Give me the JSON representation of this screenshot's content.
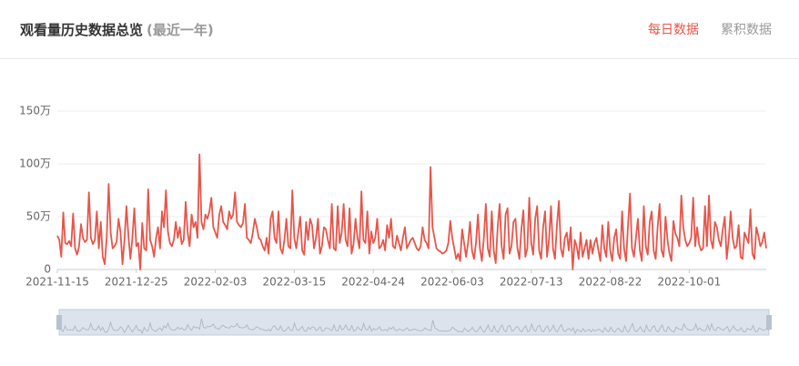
{
  "header": {
    "title": "观看量历史数据总览",
    "subtitle": "(最近一年)",
    "tabs": [
      "每日数据",
      "累积数据"
    ]
  },
  "chart_data": {
    "type": "line",
    "categories": [
      "2021-11-15",
      null,
      null,
      null,
      null,
      null,
      null,
      null,
      null,
      null,
      null,
      null,
      null,
      null,
      null,
      null,
      null,
      null,
      null,
      null,
      null,
      null,
      null,
      null,
      null,
      null,
      null,
      null,
      null,
      null,
      null,
      null,
      null,
      null,
      null,
      null,
      null,
      null,
      null,
      null,
      "2021-12-25",
      null,
      null,
      null,
      null,
      null,
      null,
      null,
      null,
      null,
      null,
      null,
      null,
      null,
      null,
      null,
      null,
      null,
      null,
      null,
      null,
      null,
      null,
      null,
      null,
      null,
      null,
      null,
      null,
      null,
      null,
      null,
      null,
      null,
      null,
      null,
      null,
      null,
      null,
      null,
      "2022-02-03",
      null,
      null,
      null,
      null,
      null,
      null,
      null,
      null,
      null,
      null,
      null,
      null,
      null,
      null,
      null,
      null,
      null,
      null,
      null,
      null,
      null,
      null,
      null,
      null,
      null,
      null,
      null,
      null,
      null,
      null,
      null,
      null,
      null,
      null,
      null,
      null,
      null,
      null,
      null,
      "2022-03-15",
      null,
      null,
      null,
      null,
      null,
      null,
      null,
      null,
      null,
      null,
      null,
      null,
      null,
      null,
      null,
      null,
      null,
      null,
      null,
      null,
      null,
      null,
      null,
      null,
      null,
      null,
      null,
      null,
      null,
      null,
      null,
      null,
      null,
      null,
      null,
      null,
      null,
      null,
      null,
      "2022-04-24",
      null,
      null,
      null,
      null,
      null,
      null,
      null,
      null,
      null,
      null,
      null,
      null,
      null,
      null,
      null,
      null,
      null,
      null,
      null,
      null,
      null,
      null,
      null,
      null,
      null,
      null,
      null,
      null,
      null,
      null,
      null,
      null,
      null,
      null,
      null,
      null,
      null,
      null,
      null,
      "2022-06-03",
      null,
      null,
      null,
      null,
      null,
      null,
      null,
      null,
      null,
      null,
      null,
      null,
      null,
      null,
      null,
      null,
      null,
      null,
      null,
      null,
      null,
      null,
      null,
      null,
      null,
      null,
      null,
      null,
      null,
      null,
      null,
      null,
      null,
      null,
      null,
      null,
      null,
      null,
      null,
      "2022-07-13",
      null,
      null,
      null,
      null,
      null,
      null,
      null,
      null,
      null,
      null,
      null,
      null,
      null,
      null,
      null,
      null,
      null,
      null,
      null,
      null,
      null,
      null,
      null,
      null,
      null,
      null,
      null,
      null,
      null,
      null,
      null,
      null,
      null,
      null,
      null,
      null,
      null,
      null,
      null,
      "2022-08-22",
      null,
      null,
      null,
      null,
      null,
      null,
      null,
      null,
      null,
      null,
      null,
      null,
      null,
      null,
      null,
      null,
      null,
      null,
      null,
      null,
      null,
      null,
      null,
      null,
      null,
      null,
      null,
      null,
      null,
      null,
      null,
      null,
      null,
      null,
      null,
      null,
      null,
      null,
      null,
      "2022-10-01",
      null,
      null,
      null,
      null,
      null,
      null,
      null,
      null,
      null,
      null,
      null,
      null,
      null,
      null,
      null,
      null,
      null,
      null,
      null,
      null,
      null,
      null,
      null,
      null,
      null,
      null,
      null,
      null,
      null,
      null,
      null,
      null,
      null,
      null,
      null,
      null,
      null,
      null,
      null
    ],
    "values": [
      32,
      28,
      12,
      54,
      25,
      24,
      27,
      22,
      53,
      20,
      14,
      22,
      43,
      30,
      26,
      28,
      73,
      30,
      24,
      28,
      55,
      20,
      45,
      12,
      5,
      30,
      81,
      35,
      20,
      22,
      26,
      48,
      35,
      5,
      28,
      60,
      32,
      10,
      30,
      58,
      22,
      25,
      0,
      44,
      20,
      18,
      76,
      28,
      22,
      12,
      30,
      40,
      20,
      55,
      40,
      75,
      36,
      25,
      22,
      28,
      45,
      30,
      40,
      24,
      28,
      64,
      35,
      22,
      52,
      40,
      45,
      30,
      109,
      45,
      38,
      52,
      48,
      55,
      68,
      40,
      35,
      30,
      52,
      60,
      45,
      42,
      38,
      55,
      48,
      52,
      73,
      45,
      42,
      40,
      44,
      62,
      30,
      28,
      25,
      35,
      48,
      40,
      30,
      28,
      22,
      18,
      30,
      15,
      48,
      55,
      30,
      25,
      55,
      20,
      15,
      28,
      48,
      22,
      20,
      75,
      30,
      20,
      35,
      50,
      18,
      14,
      45,
      28,
      48,
      42,
      20,
      30,
      48,
      15,
      22,
      40,
      38,
      28,
      20,
      62,
      20,
      18,
      60,
      25,
      35,
      62,
      28,
      22,
      58,
      15,
      24,
      48,
      30,
      20,
      74,
      28,
      25,
      55,
      15,
      36,
      25,
      30,
      48,
      20,
      22,
      28,
      18,
      42,
      30,
      48,
      22,
      20,
      32,
      25,
      18,
      30,
      40,
      20,
      24,
      28,
      30,
      25,
      20,
      18,
      22,
      40,
      28,
      25,
      20,
      97,
      40,
      30,
      20,
      18,
      17,
      15,
      16,
      18,
      25,
      46,
      30,
      20,
      10,
      15,
      8,
      38,
      25,
      12,
      25,
      45,
      18,
      10,
      25,
      52,
      20,
      8,
      30,
      62,
      20,
      12,
      55,
      18,
      6,
      40,
      62,
      22,
      10,
      52,
      58,
      15,
      22,
      45,
      48,
      20,
      10,
      38,
      56,
      12,
      20,
      68,
      25,
      14,
      48,
      60,
      18,
      10,
      40,
      55,
      12,
      28,
      60,
      20,
      10,
      42,
      65,
      20,
      12,
      30,
      35,
      18,
      40,
      0,
      28,
      22,
      10,
      35,
      12,
      20,
      28,
      10,
      28,
      15,
      25,
      30,
      18,
      8,
      42,
      20,
      12,
      45,
      18,
      8,
      30,
      38,
      15,
      10,
      55,
      20,
      8,
      42,
      72,
      20,
      12,
      30,
      48,
      18,
      8,
      60,
      22,
      14,
      45,
      55,
      18,
      10,
      40,
      62,
      18,
      12,
      50,
      28,
      15,
      8,
      46,
      34,
      30,
      22,
      70,
      40,
      28,
      22,
      25,
      30,
      68,
      22,
      40,
      24,
      18,
      20,
      60,
      22,
      70,
      28,
      20,
      45,
      40,
      28,
      22,
      38,
      50,
      10,
      28,
      55,
      30,
      20,
      22,
      42,
      12,
      10,
      35,
      30,
      25,
      57,
      15,
      10,
      40,
      32,
      22,
      26,
      35,
      20
    ],
    "color": "#e8554a",
    "ylim": [
      0,
      150
    ],
    "yticks": [
      0,
      {
        "value": 50,
        "label": "50万"
      },
      {
        "value": 100,
        "label": "100万"
      },
      {
        "value": 150,
        "label": "150万"
      }
    ],
    "grid": true
  }
}
